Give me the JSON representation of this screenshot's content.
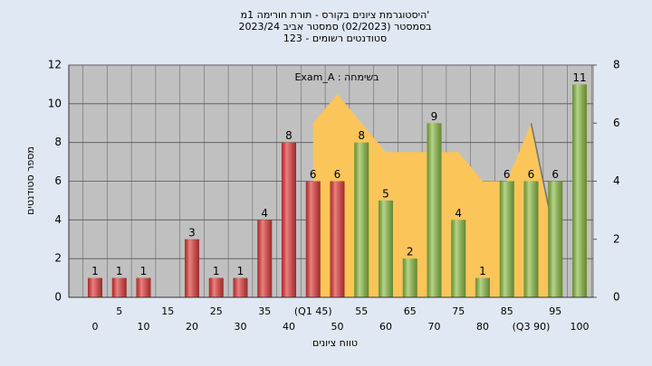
{
  "chart_data": {
    "type": "bar",
    "title": [
      "היסטוגרמת ציונים בקורס - תורת חורימה 1מ'",
      "בסמסטר (02/2023)  סמסטר אביב 2023/24",
      "סטודנטים רשומים - 123"
    ],
    "annotation": "Exam_A : בשימחה",
    "xlabel": "טווח ציונים",
    "ylabel": "מספר סטודנטים",
    "categories": [
      "0",
      "5",
      "10",
      "15",
      "20",
      "25",
      "30",
      "35",
      "40",
      "(Q1 45)",
      "50",
      "55",
      "60",
      "65",
      "70",
      "75",
      "80",
      "85",
      "(Q3 90)",
      "95",
      "100"
    ],
    "values": [
      1,
      1,
      1,
      null,
      3,
      1,
      1,
      4,
      8,
      6,
      6,
      8,
      5,
      2,
      9,
      4,
      1,
      6,
      6,
      6,
      11
    ],
    "colors": [
      "#e53b3b",
      "#e53b3b",
      "#e53b3b",
      "#e53b3b",
      "#e53b3b",
      "#e53b3b",
      "#e53b3b",
      "#e53b3b",
      "#e53b3b",
      "#e53b3b",
      "#e53b3b",
      "#8fc047",
      "#8fc047",
      "#8fc047",
      "#8fc047",
      "#8fc047",
      "#8fc047",
      "#8fc047",
      "#8fc047",
      "#8fc047",
      "#8fc047"
    ],
    "series": [
      {
        "type": "area",
        "axis": "y2",
        "color": "#fbc55a",
        "values": [
          null,
          null,
          null,
          null,
          null,
          null,
          null,
          null,
          null,
          6,
          7,
          6,
          5,
          5,
          5,
          5,
          4,
          4,
          6,
          2,
          null
        ]
      },
      {
        "type": "line",
        "axis": "y2",
        "color": "#707070",
        "values": [
          null,
          null,
          null,
          null,
          null,
          null,
          null,
          null,
          null,
          null,
          null,
          null,
          null,
          null,
          null,
          null,
          null,
          null,
          6,
          2,
          null
        ]
      }
    ],
    "ylim": [
      0,
      12
    ],
    "yticks": [
      0,
      2,
      4,
      6,
      8,
      10,
      12
    ],
    "y2lim": [
      0,
      8
    ],
    "y2ticks": [
      0,
      2,
      4,
      6,
      8
    ],
    "grid": true
  }
}
